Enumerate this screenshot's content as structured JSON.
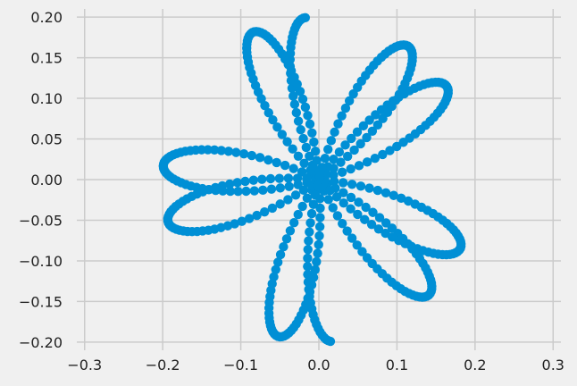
{
  "chart_data": {
    "type": "scatter",
    "title": "",
    "xlabel": "",
    "ylabel": "",
    "xlim": [
      -0.31,
      0.31
    ],
    "ylim": [
      -0.21,
      0.21
    ],
    "xticks": [
      -0.3,
      -0.2,
      -0.1,
      0.0,
      0.1,
      0.2,
      0.3
    ],
    "xtick_labels": [
      "−0.3",
      "−0.2",
      "−0.1",
      "0.0",
      "0.1",
      "0.2",
      "0.3"
    ],
    "yticks": [
      -0.2,
      -0.15,
      -0.1,
      -0.05,
      0.0,
      0.05,
      0.1,
      0.15,
      0.2
    ],
    "ytick_labels": [
      "−0.20",
      "−0.15",
      "−0.10",
      "−0.05",
      "0.00",
      "0.05",
      "0.10",
      "0.15",
      "0.20"
    ],
    "grid": true,
    "colors": {
      "marker": "#008fd5",
      "background": "#f0f0f0",
      "grid": "#cbcbcb"
    },
    "series": [
      {
        "marker": "circle",
        "curve": "rose",
        "x": [],
        "y": []
      }
    ]
  }
}
